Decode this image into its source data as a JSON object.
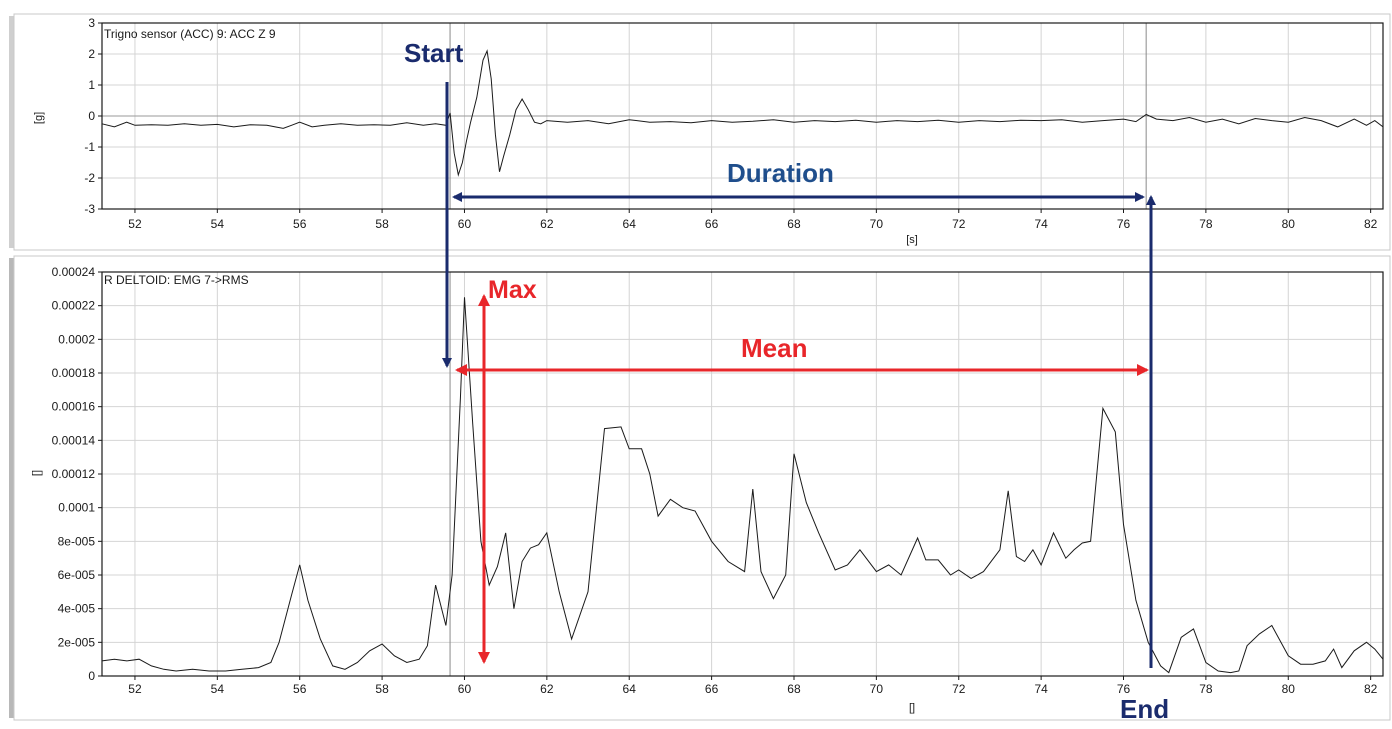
{
  "chart_data": [
    {
      "type": "line",
      "title": "Trigno sensor (ACC) 9: ACC Z 9",
      "xlabel": "[s]",
      "ylabel": "[g]",
      "xlim": [
        51.2,
        82.3
      ],
      "ylim": [
        -3,
        3
      ],
      "x_ticks": [
        52,
        54,
        56,
        58,
        60,
        62,
        64,
        66,
        68,
        70,
        72,
        74,
        76,
        78,
        80,
        82
      ],
      "y_ticks": [
        3,
        2,
        1,
        0,
        -1,
        -2,
        -3
      ],
      "grid": true,
      "marker_lines_x": [
        59.65,
        76.55
      ],
      "series": [
        {
          "x": [
            51.2,
            51.5,
            51.8,
            52.0,
            52.4,
            52.8,
            53.2,
            53.6,
            54.0,
            54.4,
            54.8,
            55.2,
            55.6,
            55.8,
            56.0,
            56.3,
            56.6,
            57.0,
            57.4,
            57.8,
            58.2,
            58.6,
            59.0,
            59.3,
            59.55,
            59.65,
            59.75,
            59.85,
            59.95,
            60.05,
            60.15,
            60.3,
            60.45,
            60.55,
            60.65,
            60.75,
            60.85,
            60.95,
            61.1,
            61.25,
            61.4,
            61.55,
            61.7,
            61.85,
            62.0,
            62.5,
            63.0,
            63.5,
            64.0,
            64.5,
            65.0,
            65.5,
            66.0,
            66.5,
            67.0,
            67.5,
            68.0,
            68.5,
            69.0,
            69.5,
            70.0,
            70.5,
            71.0,
            71.5,
            72.0,
            72.5,
            73.0,
            73.5,
            74.0,
            74.5,
            75.0,
            75.5,
            76.0,
            76.3,
            76.55,
            76.8,
            77.2,
            77.6,
            78.0,
            78.4,
            78.8,
            79.2,
            79.6,
            80.0,
            80.4,
            80.8,
            81.2,
            81.6,
            81.9,
            82.1,
            82.3
          ],
          "values": [
            -0.25,
            -0.35,
            -0.2,
            -0.3,
            -0.28,
            -0.3,
            -0.25,
            -0.3,
            -0.27,
            -0.35,
            -0.28,
            -0.3,
            -0.4,
            -0.3,
            -0.2,
            -0.35,
            -0.3,
            -0.25,
            -0.3,
            -0.28,
            -0.3,
            -0.22,
            -0.3,
            -0.25,
            -0.3,
            0.1,
            -1.2,
            -1.9,
            -1.5,
            -0.8,
            -0.2,
            0.6,
            1.8,
            2.1,
            1.2,
            -0.6,
            -1.8,
            -1.3,
            -0.6,
            0.2,
            0.55,
            0.2,
            -0.2,
            -0.25,
            -0.15,
            -0.2,
            -0.15,
            -0.25,
            -0.12,
            -0.2,
            -0.18,
            -0.22,
            -0.15,
            -0.2,
            -0.17,
            -0.12,
            -0.2,
            -0.15,
            -0.18,
            -0.14,
            -0.2,
            -0.15,
            -0.18,
            -0.14,
            -0.2,
            -0.15,
            -0.18,
            -0.14,
            -0.15,
            -0.12,
            -0.2,
            -0.15,
            -0.1,
            -0.18,
            0.05,
            -0.1,
            -0.15,
            -0.05,
            -0.2,
            -0.1,
            -0.25,
            -0.08,
            -0.15,
            -0.2,
            -0.05,
            -0.15,
            -0.35,
            -0.1,
            -0.3,
            -0.15,
            -0.35
          ]
        }
      ]
    },
    {
      "type": "line",
      "title": "R DELTOID: EMG 7->RMS",
      "xlabel": "[]",
      "ylabel": "[]",
      "xlim": [
        51.2,
        82.3
      ],
      "ylim": [
        0,
        0.00024
      ],
      "x_ticks": [
        52,
        54,
        56,
        58,
        60,
        62,
        64,
        66,
        68,
        70,
        72,
        74,
        76,
        78,
        80,
        82
      ],
      "y_ticks": [
        "0.00024",
        "0.00022",
        "0.0002",
        "0.00018",
        "0.00016",
        "0.00014",
        "0.00012",
        "0.0001",
        "8e-005",
        "6e-005",
        "4e-005",
        "2e-005",
        "0"
      ],
      "grid": true,
      "marker_lines_x": [
        59.65
      ],
      "series": [
        {
          "x": [
            51.2,
            51.5,
            51.8,
            52.1,
            52.4,
            52.7,
            53.0,
            53.4,
            53.8,
            54.2,
            54.6,
            55.0,
            55.3,
            55.5,
            55.8,
            56.0,
            56.2,
            56.5,
            56.8,
            57.1,
            57.4,
            57.7,
            58.0,
            58.3,
            58.6,
            58.9,
            59.1,
            59.3,
            59.55,
            59.7,
            59.9,
            60.0,
            60.2,
            60.4,
            60.6,
            60.8,
            61.0,
            61.2,
            61.4,
            61.6,
            61.8,
            62.0,
            62.3,
            62.6,
            63.0,
            63.4,
            63.8,
            64.0,
            64.3,
            64.5,
            64.7,
            65.0,
            65.3,
            65.6,
            66.0,
            66.4,
            66.8,
            67.0,
            67.2,
            67.5,
            67.8,
            68.0,
            68.3,
            68.6,
            69.0,
            69.3,
            69.6,
            70.0,
            70.3,
            70.6,
            71.0,
            71.2,
            71.5,
            71.8,
            72.0,
            72.3,
            72.6,
            73.0,
            73.2,
            73.4,
            73.6,
            73.8,
            74.0,
            74.3,
            74.6,
            74.8,
            75.0,
            75.2,
            75.5,
            75.8,
            76.0,
            76.3,
            76.6,
            76.9,
            77.1,
            77.4,
            77.7,
            78.0,
            78.3,
            78.6,
            78.8,
            79.0,
            79.3,
            79.6,
            80.0,
            80.3,
            80.6,
            80.9,
            81.1,
            81.3,
            81.6,
            81.9,
            82.1,
            82.3
          ],
          "values": [
            9e-06,
            1e-05,
            9e-06,
            1e-05,
            6e-06,
            4e-06,
            3e-06,
            4e-06,
            3e-06,
            3e-06,
            4e-06,
            5e-06,
            8e-06,
            2e-05,
            4.8e-05,
            6.6e-05,
            4.5e-05,
            2.2e-05,
            6e-06,
            4e-06,
            8e-06,
            1.5e-05,
            1.9e-05,
            1.2e-05,
            8e-06,
            1e-05,
            1.8e-05,
            5.4e-05,
            3e-05,
            6e-05,
            0.000165,
            0.000225,
            0.00015,
            8e-05,
            5.4e-05,
            6.5e-05,
            8.5e-05,
            4e-05,
            6.8e-05,
            7.6e-05,
            7.8e-05,
            8.5e-05,
            5e-05,
            2.2e-05,
            5e-05,
            0.000147,
            0.000148,
            0.000135,
            0.000135,
            0.00012,
            9.5e-05,
            0.000105,
            0.0001,
            9.8e-05,
            8e-05,
            6.8e-05,
            6.2e-05,
            0.000111,
            6.2e-05,
            4.6e-05,
            6e-05,
            0.000132,
            0.000103,
            8.5e-05,
            6.3e-05,
            6.6e-05,
            7.5e-05,
            6.2e-05,
            6.6e-05,
            6e-05,
            8.2e-05,
            6.9e-05,
            6.9e-05,
            6e-05,
            6.3e-05,
            5.8e-05,
            6.2e-05,
            7.5e-05,
            0.00011,
            7.1e-05,
            6.8e-05,
            7.5e-05,
            6.6e-05,
            8.5e-05,
            7e-05,
            7.5e-05,
            7.9e-05,
            8e-05,
            0.000159,
            0.000145,
            9e-05,
            4.5e-05,
            2e-05,
            6e-06,
            2e-06,
            2.3e-05,
            2.8e-05,
            8e-06,
            3e-06,
            2e-06,
            3e-06,
            1.8e-05,
            2.5e-05,
            3e-05,
            1.2e-05,
            7e-06,
            7e-06,
            9e-06,
            1.6e-05,
            5e-06,
            1.5e-05,
            2e-05,
            1.6e-05,
            1e-05
          ]
        }
      ]
    }
  ],
  "annotations": {
    "start": "Start",
    "end": "End",
    "duration": "Duration",
    "max": "Max",
    "mean": "Mean"
  },
  "colors": {
    "navy": "#1a2b6d",
    "annotation_red": "#e8262a",
    "duration_text": "#1f4e8c",
    "grid": "#d4d4d4",
    "trace": "#1a1a1a"
  }
}
